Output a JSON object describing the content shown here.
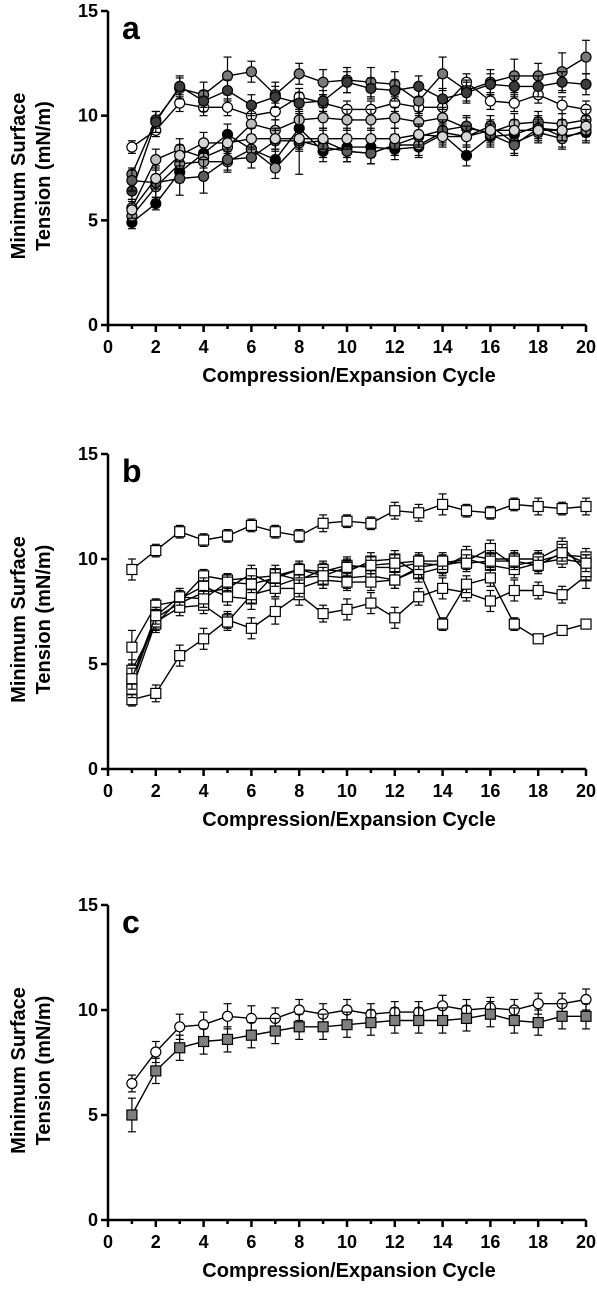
{
  "chart_data": [
    {
      "panel_label": "a",
      "type": "line",
      "marker": "circle",
      "xlabel": "Compression/Expansion Cycle",
      "ylabel_lines": [
        "Minimum Surface",
        "Tension (mN/m)"
      ],
      "xlim": [
        0,
        20
      ],
      "ylim": [
        0,
        15
      ],
      "xticks": [
        0,
        2,
        4,
        6,
        8,
        10,
        12,
        14,
        16,
        18,
        20
      ],
      "yticks": [
        0,
        5,
        10,
        15
      ],
      "grid": false,
      "x": [
        1,
        2,
        3,
        4,
        5,
        6,
        7,
        8,
        9,
        10,
        11,
        12,
        13,
        14,
        15,
        16,
        17,
        18,
        19,
        20
      ],
      "series": [
        {
          "color": "#ffffff",
          "values": [
            8.5,
            9.3,
            10.6,
            10.4,
            10.4,
            10.0,
            10.2,
            10.9,
            10.6,
            10.3,
            10.3,
            10.6,
            10.4,
            10.4,
            11.6,
            10.7,
            10.6,
            11.0,
            10.5,
            10.3
          ],
          "error": [
            0.3,
            0.3,
            0.4,
            0.4,
            0.4,
            0.4,
            0.4,
            0.4,
            0.4,
            0.4,
            0.4,
            0.4,
            0.4,
            0.4,
            0.4,
            0.4,
            0.4,
            0.4,
            0.4,
            0.4
          ]
        },
        {
          "color": "#7a7a7a",
          "values": [
            7.2,
            9.8,
            11.3,
            11.0,
            11.9,
            12.1,
            11.0,
            12.0,
            11.6,
            11.7,
            11.6,
            11.5,
            10.7,
            12.0,
            11.2,
            11.6,
            11.9,
            11.9,
            12.1,
            12.8
          ],
          "error": [
            0.3,
            0.4,
            0.5,
            0.6,
            0.9,
            0.5,
            0.6,
            0.5,
            0.6,
            0.6,
            0.7,
            0.6,
            0.6,
            0.8,
            0.5,
            0.6,
            0.8,
            0.6,
            0.9,
            0.8
          ]
        },
        {
          "color": "#3c3c3c",
          "values": [
            6.4,
            9.7,
            11.4,
            10.7,
            11.2,
            10.5,
            10.9,
            10.6,
            10.7,
            11.6,
            11.3,
            11.2,
            11.4,
            10.8,
            11.1,
            11.5,
            11.4,
            11.4,
            11.6,
            11.5
          ],
          "error": [
            0.4,
            0.5,
            0.5,
            0.5,
            0.5,
            0.5,
            0.5,
            0.5,
            0.5,
            0.5,
            0.5,
            0.5,
            0.5,
            0.5,
            0.5,
            0.5,
            0.5,
            0.5,
            0.5,
            0.5
          ]
        },
        {
          "color": "#000000",
          "values": [
            4.9,
            5.8,
            7.3,
            8.2,
            9.1,
            8.4,
            7.9,
            9.4,
            8.3,
            8.5,
            8.5,
            8.4,
            8.5,
            9.1,
            8.1,
            9.0,
            9.1,
            9.5,
            9.0,
            9.2
          ],
          "error": [
            0.3,
            0.3,
            0.5,
            0.5,
            0.5,
            0.5,
            0.5,
            0.5,
            0.5,
            0.5,
            0.5,
            0.5,
            0.5,
            0.5,
            0.5,
            0.5,
            0.5,
            0.5,
            0.5,
            0.5
          ]
        },
        {
          "color": "#bdbdbd",
          "values": [
            5.6,
            7.9,
            8.4,
            8.0,
            8.5,
            9.6,
            9.3,
            9.8,
            9.9,
            9.8,
            9.8,
            9.9,
            9.7,
            9.9,
            9.4,
            9.2,
            9.6,
            9.7,
            9.6,
            9.8
          ],
          "error": [
            0.4,
            0.5,
            0.5,
            0.5,
            0.5,
            0.5,
            0.5,
            0.5,
            0.5,
            0.5,
            0.5,
            0.5,
            0.5,
            0.5,
            0.5,
            0.5,
            0.5,
            0.5,
            0.5,
            0.5
          ]
        },
        {
          "color": "#9a9a9a",
          "values": [
            5.2,
            6.6,
            7.7,
            7.8,
            7.8,
            8.4,
            7.5,
            8.7,
            8.8,
            8.3,
            8.2,
            8.6,
            8.6,
            9.2,
            9.0,
            9.5,
            8.7,
            9.2,
            8.9,
            9.3
          ],
          "error": [
            0.4,
            0.5,
            0.5,
            0.5,
            0.5,
            0.5,
            0.5,
            1.5,
            0.5,
            0.5,
            0.5,
            0.5,
            0.5,
            0.5,
            0.5,
            0.5,
            0.5,
            0.5,
            0.5,
            0.5
          ]
        },
        {
          "color": "#5c5c5c",
          "values": [
            6.9,
            6.8,
            7.0,
            7.1,
            7.9,
            8.0,
            8.8,
            8.8,
            8.5,
            8.3,
            8.2,
            8.6,
            9.0,
            9.3,
            9.5,
            9.1,
            8.6,
            9.4,
            9.3,
            9.5
          ],
          "error": [
            0.5,
            0.8,
            0.8,
            0.8,
            0.5,
            0.5,
            0.5,
            0.5,
            0.5,
            0.5,
            0.5,
            0.5,
            0.5,
            0.5,
            0.5,
            0.5,
            0.5,
            0.5,
            0.5,
            0.5
          ]
        },
        {
          "color": "#d6d6d6",
          "values": [
            5.5,
            7.0,
            8.1,
            8.7,
            8.7,
            8.9,
            8.9,
            8.9,
            8.9,
            8.9,
            8.9,
            8.9,
            9.1,
            9.0,
            9.0,
            9.3,
            9.3,
            9.3,
            9.3,
            9.5
          ],
          "error": [
            0.4,
            0.5,
            0.5,
            0.5,
            0.5,
            0.5,
            0.5,
            0.5,
            0.5,
            0.5,
            0.5,
            0.5,
            0.5,
            0.5,
            0.5,
            0.5,
            0.5,
            0.5,
            0.5,
            0.5
          ]
        }
      ]
    },
    {
      "panel_label": "b",
      "type": "line",
      "marker": "square",
      "xlabel": "Compression/Expansion Cycle",
      "ylabel_lines": [
        "Minimum Surface",
        "Tension (mN/m)"
      ],
      "xlim": [
        0,
        20
      ],
      "ylim": [
        0,
        15
      ],
      "xticks": [
        0,
        2,
        4,
        6,
        8,
        10,
        12,
        14,
        16,
        18,
        20
      ],
      "yticks": [
        0,
        5,
        10,
        15
      ],
      "grid": false,
      "x": [
        1,
        2,
        3,
        4,
        5,
        6,
        7,
        8,
        9,
        10,
        11,
        12,
        13,
        14,
        15,
        16,
        17,
        18,
        19,
        20
      ],
      "series": [
        {
          "color": "#ffffff",
          "values": [
            9.5,
            10.4,
            11.3,
            10.9,
            11.1,
            11.6,
            11.3,
            11.1,
            11.7,
            11.8,
            11.7,
            12.3,
            12.2,
            12.6,
            12.3,
            12.2,
            12.6,
            12.5,
            12.4,
            12.5
          ],
          "error": [
            0.5,
            0.3,
            0.3,
            0.3,
            0.3,
            0.3,
            0.3,
            0.3,
            0.4,
            0.3,
            0.3,
            0.4,
            0.4,
            0.5,
            0.3,
            0.3,
            0.3,
            0.4,
            0.3,
            0.4
          ]
        },
        {
          "color": "#ffffff",
          "values": [
            3.3,
            3.6,
            5.4,
            6.2,
            7.1,
            6.7,
            7.5,
            8.3,
            7.4,
            7.6,
            7.9,
            7.2,
            8.2,
            8.6,
            8.4,
            8.0,
            8.5,
            8.5,
            8.3,
            9.2
          ],
          "error": [
            0.3,
            0.4,
            0.5,
            0.5,
            0.4,
            0.5,
            0.6,
            0.5,
            0.4,
            0.5,
            0.5,
            0.5,
            0.4,
            0.5,
            0.4,
            0.5,
            0.5,
            0.4,
            0.4,
            0.6
          ]
        },
        {
          "color": "#ffffff",
          "values": [
            5.8,
            7.8,
            8.0,
            9.2,
            9.0,
            9.1,
            9.2,
            9.5,
            9.4,
            9.7,
            9.6,
            9.6,
            9.8,
            9.7,
            9.9,
            10.5,
            9.7,
            9.9,
            10.2,
            10.1
          ],
          "error": [
            0.8,
            0.3,
            0.3,
            0.3,
            0.3,
            0.3,
            0.3,
            0.3,
            0.4,
            0.4,
            0.4,
            0.4,
            0.4,
            0.4,
            0.4,
            0.4,
            0.4,
            0.4,
            0.4,
            0.4
          ]
        },
        {
          "color": "#ffffff",
          "values": [
            4.1,
            7.2,
            7.9,
            8.4,
            8.6,
            9.3,
            8.7,
            9.1,
            9.2,
            9.1,
            9.2,
            9.0,
            9.6,
            9.8,
            10.0,
            9.7,
            9.5,
            9.8,
            10.0,
            9.8
          ],
          "error": [
            0.5,
            0.4,
            0.4,
            0.4,
            0.4,
            0.4,
            0.5,
            0.4,
            0.4,
            0.5,
            0.4,
            0.4,
            0.4,
            0.4,
            0.4,
            0.4,
            0.4,
            0.4,
            0.4,
            0.4
          ]
        },
        {
          "color": "#ffffff",
          "values": [
            4.7,
            6.9,
            8.1,
            8.7,
            8.2,
            8.1,
            9.3,
            9.0,
            9.5,
            9.4,
            9.9,
            10.0,
            9.3,
            9.6,
            10.2,
            10.0,
            10.0,
            10.0,
            10.6,
            9.4
          ],
          "error": [
            0.5,
            0.4,
            0.4,
            0.4,
            0.4,
            0.5,
            0.4,
            0.4,
            0.4,
            0.5,
            0.4,
            0.4,
            0.4,
            0.4,
            0.4,
            0.4,
            0.4,
            0.4,
            0.4,
            0.4
          ]
        },
        {
          "color": "#ffffff",
          "values": [
            3.8,
            7.0,
            7.7,
            7.8,
            7.0,
            8.3,
            8.6,
            8.6,
            9.0,
            8.9,
            8.9,
            9.0,
            9.5,
            6.9,
            8.8,
            9.1,
            6.9,
            6.2,
            6.6,
            6.9
          ],
          "error": [
            0.4,
            0.4,
            0.4,
            0.4,
            0.4,
            0.4,
            0.4,
            0.4,
            0.4,
            0.4,
            0.4,
            0.4,
            0.4,
            0.3,
            0.4,
            0.4,
            0.3,
            0.2,
            0.2,
            0.2
          ]
        },
        {
          "color": "#ffffff",
          "values": [
            4.3,
            7.3,
            8.2,
            8.1,
            8.9,
            8.8,
            9.1,
            9.5,
            9.2,
            9.6,
            9.7,
            9.8,
            9.9,
            9.9,
            9.8,
            9.9,
            9.9,
            9.7,
            10.3,
            9.8
          ],
          "error": [
            0.5,
            0.4,
            0.4,
            0.4,
            0.4,
            0.4,
            0.4,
            0.4,
            0.4,
            0.4,
            0.4,
            0.4,
            0.4,
            0.4,
            0.4,
            0.4,
            0.4,
            0.4,
            0.4,
            0.4
          ]
        }
      ]
    },
    {
      "panel_label": "c",
      "type": "line",
      "marker": "mixed",
      "xlabel": "Compression/Expansion Cycle",
      "ylabel_lines": [
        "Minimum Surface",
        "Tension (mN/m)"
      ],
      "xlim": [
        0,
        20
      ],
      "ylim": [
        0,
        15
      ],
      "xticks": [
        0,
        2,
        4,
        6,
        8,
        10,
        12,
        14,
        16,
        18,
        20
      ],
      "yticks": [
        0,
        5,
        10,
        15
      ],
      "grid": false,
      "x": [
        1,
        2,
        3,
        4,
        5,
        6,
        7,
        8,
        9,
        10,
        11,
        12,
        13,
        14,
        15,
        16,
        17,
        18,
        19,
        20
      ],
      "series": [
        {
          "color": "#ffffff",
          "marker": "circle",
          "values": [
            6.5,
            8.0,
            9.2,
            9.3,
            9.7,
            9.6,
            9.6,
            10.0,
            9.8,
            10.0,
            9.8,
            9.9,
            9.9,
            10.2,
            10.0,
            10.1,
            10.0,
            10.3,
            10.3,
            10.5
          ],
          "error": [
            0.4,
            0.5,
            0.6,
            0.6,
            0.6,
            0.6,
            0.5,
            0.5,
            0.5,
            0.5,
            0.5,
            0.5,
            0.5,
            0.5,
            0.5,
            0.5,
            0.5,
            0.5,
            0.5,
            0.5
          ]
        },
        {
          "color": "#7f7f7f",
          "marker": "square",
          "values": [
            5.0,
            7.1,
            8.2,
            8.5,
            8.6,
            8.8,
            9.0,
            9.2,
            9.2,
            9.3,
            9.4,
            9.5,
            9.5,
            9.5,
            9.6,
            9.8,
            9.5,
            9.4,
            9.7,
            9.7
          ],
          "error": [
            0.8,
            0.6,
            0.6,
            0.6,
            0.6,
            0.6,
            0.6,
            0.6,
            0.6,
            0.6,
            0.6,
            0.6,
            0.6,
            0.6,
            0.6,
            0.6,
            0.6,
            0.6,
            0.6,
            0.6
          ]
        }
      ]
    }
  ]
}
